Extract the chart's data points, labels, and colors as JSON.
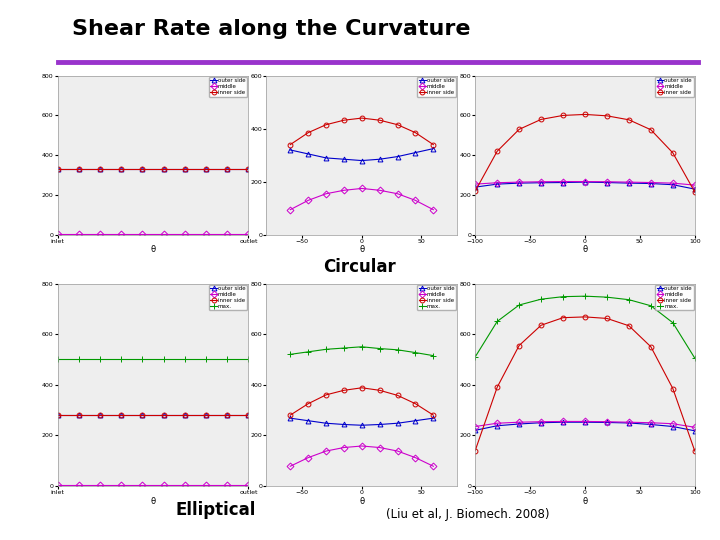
{
  "title": "Shear Rate along the Curvature",
  "title_color": "#000000",
  "title_fontsize": 16,
  "title_fontweight": "bold",
  "separator_color": "#9933cc",
  "bg_color": "#ffffff",
  "circular_label": "Circular",
  "elliptical_label": "Elliptical",
  "citation": "(Liu et al, J. Biomech. 2008)",
  "row1_col1": {
    "xlim": [
      0,
      9
    ],
    "x_ticks_label": [
      "inlet",
      "outlet"
    ],
    "ylim": [
      0,
      800
    ],
    "yticks": [
      0,
      200,
      400,
      600,
      800
    ],
    "lines": {
      "outer_side": {
        "color": "#0000cc",
        "marker": "^",
        "y": [
          330,
          330,
          330,
          330,
          330,
          330,
          330,
          330,
          330,
          330
        ],
        "style": "-"
      },
      "middle": {
        "color": "#cc00cc",
        "marker": "D",
        "y": [
          5,
          5,
          5,
          5,
          5,
          5,
          5,
          5,
          5,
          5
        ],
        "style": "-"
      },
      "inner_side": {
        "color": "#cc0000",
        "marker": "o",
        "y": [
          330,
          330,
          330,
          330,
          330,
          330,
          330,
          330,
          330,
          330
        ],
        "style": "-"
      }
    },
    "legend_labels": [
      "outer side",
      "middle",
      "inner side"
    ]
  },
  "row1_col2": {
    "xlim": [
      -80,
      80
    ],
    "xticks": [
      -50,
      0,
      50
    ],
    "ylim": [
      0,
      600
    ],
    "yticks": [
      0,
      200,
      400,
      600
    ],
    "lines": {
      "outer_side": {
        "color": "#0000cc",
        "marker": "^",
        "style": "-",
        "x": [
          -60,
          -45,
          -30,
          -15,
          0,
          15,
          30,
          45,
          60
        ],
        "y": [
          320,
          305,
          290,
          285,
          280,
          285,
          295,
          310,
          325
        ]
      },
      "middle": {
        "color": "#cc00cc",
        "marker": "D",
        "style": "-",
        "x": [
          -60,
          -45,
          -30,
          -15,
          0,
          15,
          30,
          45,
          60
        ],
        "y": [
          95,
          130,
          155,
          168,
          175,
          168,
          155,
          130,
          95
        ]
      },
      "inner_side": {
        "color": "#cc0000",
        "marker": "o",
        "style": "-",
        "x": [
          -60,
          -45,
          -30,
          -15,
          0,
          15,
          30,
          45,
          60
        ],
        "y": [
          340,
          385,
          415,
          432,
          440,
          432,
          415,
          385,
          340
        ]
      }
    },
    "legend_labels": [
      "outer side",
      "middle",
      "inner side"
    ]
  },
  "row1_col3": {
    "xlim": [
      -100,
      100
    ],
    "xticks": [
      -100,
      -50,
      0,
      50,
      100
    ],
    "ylim": [
      0,
      800
    ],
    "yticks": [
      0,
      200,
      400,
      600,
      800
    ],
    "lines": {
      "outer_side": {
        "color": "#0000cc",
        "marker": "^",
        "style": "-",
        "x": [
          -100,
          -80,
          -60,
          -40,
          -20,
          0,
          20,
          40,
          60,
          80,
          100
        ],
        "y": [
          240,
          255,
          260,
          262,
          263,
          265,
          263,
          260,
          258,
          252,
          230
        ]
      },
      "middle": {
        "color": "#cc00cc",
        "marker": "D",
        "style": "-",
        "x": [
          -100,
          -80,
          -60,
          -40,
          -20,
          0,
          20,
          40,
          60,
          80,
          100
        ],
        "y": [
          255,
          262,
          265,
          267,
          268,
          268,
          267,
          265,
          263,
          260,
          250
        ]
      },
      "inner_side": {
        "color": "#cc0000",
        "marker": "o",
        "style": "-",
        "x": [
          -100,
          -80,
          -60,
          -40,
          -20,
          0,
          20,
          40,
          60,
          80,
          100
        ],
        "y": [
          220,
          420,
          530,
          580,
          600,
          605,
          598,
          578,
          528,
          412,
          215
        ]
      }
    },
    "legend_labels": [
      "outer side",
      "middle",
      "inner side"
    ]
  },
  "row2_col1": {
    "xlim": [
      0,
      9
    ],
    "x_ticks_label": [
      "inlet",
      "outlet"
    ],
    "ylim": [
      0,
      800
    ],
    "yticks": [
      0,
      200,
      400,
      600,
      800
    ],
    "lines": {
      "outer_side": {
        "color": "#0000cc",
        "marker": "^",
        "style": "-",
        "y": [
          280,
          280,
          280,
          280,
          280,
          280,
          280,
          280,
          280,
          280
        ]
      },
      "middle": {
        "color": "#cc00cc",
        "marker": "D",
        "style": "-",
        "y": [
          5,
          5,
          5,
          5,
          5,
          5,
          5,
          5,
          5,
          5
        ]
      },
      "inner_side": {
        "color": "#cc0000",
        "marker": "o",
        "style": "-",
        "y": [
          280,
          280,
          280,
          280,
          280,
          280,
          280,
          280,
          280,
          280
        ]
      },
      "max": {
        "color": "#009900",
        "marker": "+",
        "style": "-",
        "y": [
          500,
          500,
          500,
          500,
          500,
          500,
          500,
          500,
          500,
          500
        ]
      }
    },
    "legend_labels": [
      "outer side",
      "middle",
      "inner side",
      "max."
    ]
  },
  "row2_col2": {
    "xlim": [
      -80,
      80
    ],
    "xticks": [
      -50,
      0,
      50
    ],
    "ylim": [
      0,
      800
    ],
    "yticks": [
      0,
      200,
      400,
      600,
      800
    ],
    "lines": {
      "outer_side": {
        "color": "#0000cc",
        "marker": "^",
        "style": "-",
        "x": [
          -60,
          -45,
          -30,
          -15,
          0,
          15,
          30,
          45,
          60
        ],
        "y": [
          268,
          258,
          248,
          243,
          240,
          243,
          248,
          258,
          268
        ]
      },
      "middle": {
        "color": "#cc00cc",
        "marker": "D",
        "style": "-",
        "x": [
          -60,
          -45,
          -30,
          -15,
          0,
          15,
          30,
          45,
          60
        ],
        "y": [
          78,
          112,
          138,
          152,
          158,
          152,
          138,
          112,
          78
        ]
      },
      "inner_side": {
        "color": "#cc0000",
        "marker": "o",
        "style": "-",
        "x": [
          -60,
          -45,
          -30,
          -15,
          0,
          15,
          30,
          45,
          60
        ],
        "y": [
          280,
          325,
          360,
          378,
          388,
          378,
          358,
          325,
          280
        ]
      },
      "max": {
        "color": "#009900",
        "marker": "+",
        "style": "-",
        "x": [
          -60,
          -45,
          -30,
          -15,
          0,
          15,
          30,
          45,
          60
        ],
        "y": [
          520,
          530,
          540,
          545,
          550,
          543,
          538,
          527,
          515
        ]
      }
    },
    "legend_labels": [
      "outer side",
      "middle",
      "inner side",
      "max."
    ]
  },
  "row2_col3": {
    "xlim": [
      -100,
      100
    ],
    "xticks": [
      -100,
      -50,
      0,
      50,
      100
    ],
    "ylim": [
      0,
      800
    ],
    "yticks": [
      0,
      200,
      400,
      600,
      800
    ],
    "lines": {
      "outer_side": {
        "color": "#0000cc",
        "marker": "^",
        "style": "-",
        "x": [
          -100,
          -80,
          -60,
          -40,
          -20,
          0,
          20,
          40,
          60,
          80,
          100
        ],
        "y": [
          220,
          238,
          245,
          250,
          252,
          252,
          251,
          249,
          243,
          235,
          218
        ]
      },
      "middle": {
        "color": "#cc00cc",
        "marker": "D",
        "style": "-",
        "x": [
          -100,
          -80,
          -60,
          -40,
          -20,
          0,
          20,
          40,
          60,
          80,
          100
        ],
        "y": [
          235,
          248,
          252,
          254,
          255,
          255,
          254,
          252,
          250,
          246,
          232
        ]
      },
      "inner_side": {
        "color": "#cc0000",
        "marker": "o",
        "style": "-",
        "x": [
          -100,
          -80,
          -60,
          -40,
          -20,
          0,
          20,
          40,
          60,
          80,
          100
        ],
        "y": [
          140,
          390,
          555,
          635,
          665,
          668,
          662,
          633,
          550,
          385,
          138
        ]
      },
      "max": {
        "color": "#009900",
        "marker": "+",
        "style": "-",
        "x": [
          -100,
          -80,
          -60,
          -40,
          -20,
          0,
          20,
          40,
          60,
          80,
          100
        ],
        "y": [
          510,
          650,
          715,
          738,
          748,
          750,
          746,
          736,
          712,
          645,
          505
        ]
      }
    },
    "legend_labels": [
      "outer side",
      "middle",
      "inner side",
      "max."
    ]
  }
}
